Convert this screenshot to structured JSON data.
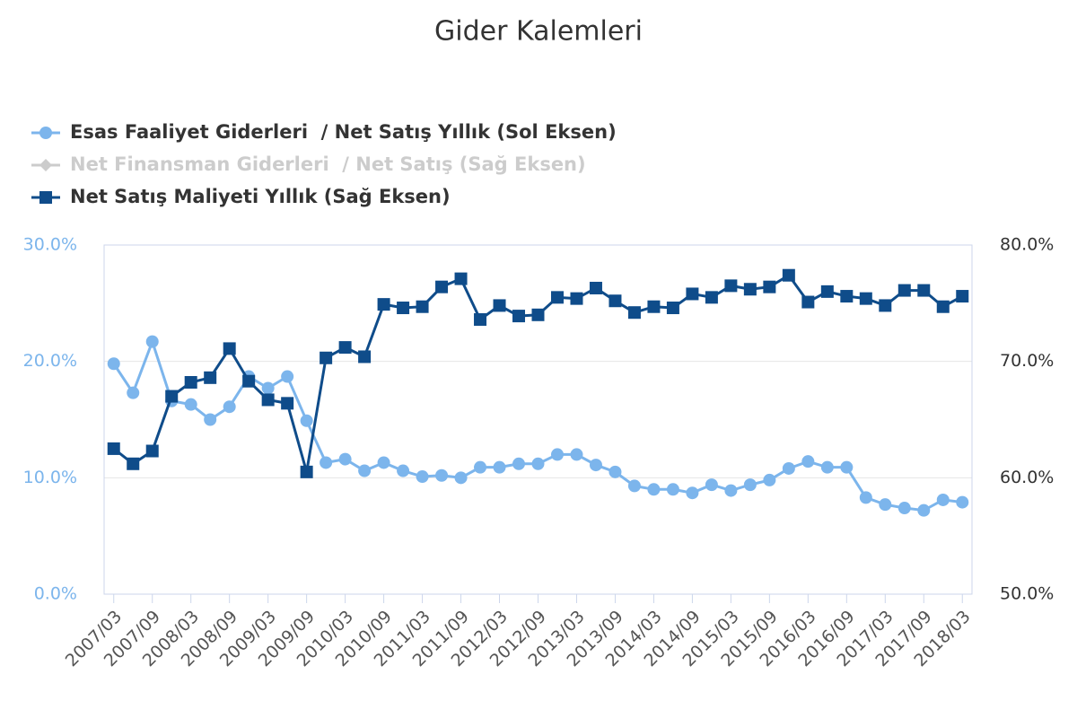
{
  "chart_data": {
    "type": "line",
    "title": "Gider Kalemleri",
    "categories": [
      "2007/03",
      null,
      "2007/09",
      null,
      "2008/03",
      null,
      "2008/09",
      null,
      "2009/03",
      null,
      "2009/09",
      null,
      "2010/03",
      null,
      "2010/09",
      null,
      "2011/03",
      null,
      "2011/09",
      null,
      "2012/03",
      null,
      "2012/09",
      null,
      "2013/03",
      null,
      "2013/09",
      null,
      "2014/03",
      null,
      "2014/09",
      null,
      "2015/03",
      null,
      "2015/09",
      null,
      "2016/03",
      null,
      "2016/09",
      null,
      "2017/03",
      null,
      "2017/09",
      null,
      "2018/03"
    ],
    "series": [
      {
        "name": "Esas Faaliyet Giderleri  / Net Satış Yıllık (Sol Eksen)",
        "color": "#7cb5ec",
        "axis": "y",
        "marker": "circle",
        "visible": true,
        "values": [
          19.8,
          17.3,
          21.7,
          16.6,
          16.3,
          15.0,
          16.1,
          18.7,
          17.7,
          18.7,
          14.9,
          11.3,
          11.6,
          10.6,
          11.3,
          10.6,
          10.1,
          10.2,
          10.0,
          10.9,
          10.9,
          11.2,
          11.2,
          12.0,
          12.0,
          11.1,
          10.5,
          9.3,
          9.0,
          9.0,
          8.7,
          9.4,
          8.9,
          9.4,
          9.8,
          10.8,
          11.4,
          10.9,
          10.9,
          8.3,
          7.7,
          7.4,
          7.2,
          8.1,
          7.9
        ]
      },
      {
        "name": "Net Finansman Giderleri  / Net Satış (Sağ Eksen)",
        "color": "#cccccc",
        "axis": "y2",
        "marker": "diamond",
        "visible": false,
        "values": [
          null,
          null,
          null,
          null,
          null,
          null,
          null,
          null,
          null,
          null,
          null,
          null,
          null,
          null,
          null,
          null,
          null,
          null,
          null,
          null,
          null,
          null,
          null,
          null,
          null,
          null,
          null,
          null,
          null,
          null,
          null,
          null,
          null,
          null,
          null,
          null,
          null,
          null,
          null,
          null,
          null,
          null,
          null,
          null,
          null
        ]
      },
      {
        "name": "Net Satış Maliyeti Yıllık (Sağ Eksen)",
        "color": "#0f4c8a",
        "axis": "y2",
        "marker": "square",
        "visible": true,
        "values": [
          62.5,
          61.2,
          62.3,
          67.0,
          68.2,
          68.6,
          71.1,
          68.3,
          66.7,
          66.4,
          60.5,
          70.3,
          71.2,
          70.4,
          74.9,
          74.6,
          74.7,
          76.4,
          77.1,
          73.6,
          74.8,
          73.9,
          74.0,
          75.5,
          75.4,
          76.3,
          75.2,
          74.2,
          74.7,
          74.6,
          75.8,
          75.5,
          76.5,
          76.2,
          76.4,
          77.4,
          75.1,
          76.0,
          75.6,
          75.4,
          74.8,
          76.1,
          76.1,
          74.7,
          75.6
        ]
      }
    ],
    "ylim": [
      0,
      30
    ],
    "yticks": [
      {
        "value": 0,
        "label": "0.0%"
      },
      {
        "value": 10,
        "label": "10.0%"
      },
      {
        "value": 20,
        "label": "20.0%"
      },
      {
        "value": 30,
        "label": "30.0%"
      }
    ],
    "y2lim": [
      50,
      80
    ],
    "y2ticks": [
      {
        "value": 50,
        "label": "50.0%"
      },
      {
        "value": 60,
        "label": "60.0%"
      },
      {
        "value": 70,
        "label": "70.0%"
      },
      {
        "value": 80,
        "label": "80.0%"
      }
    ],
    "grid": true
  }
}
